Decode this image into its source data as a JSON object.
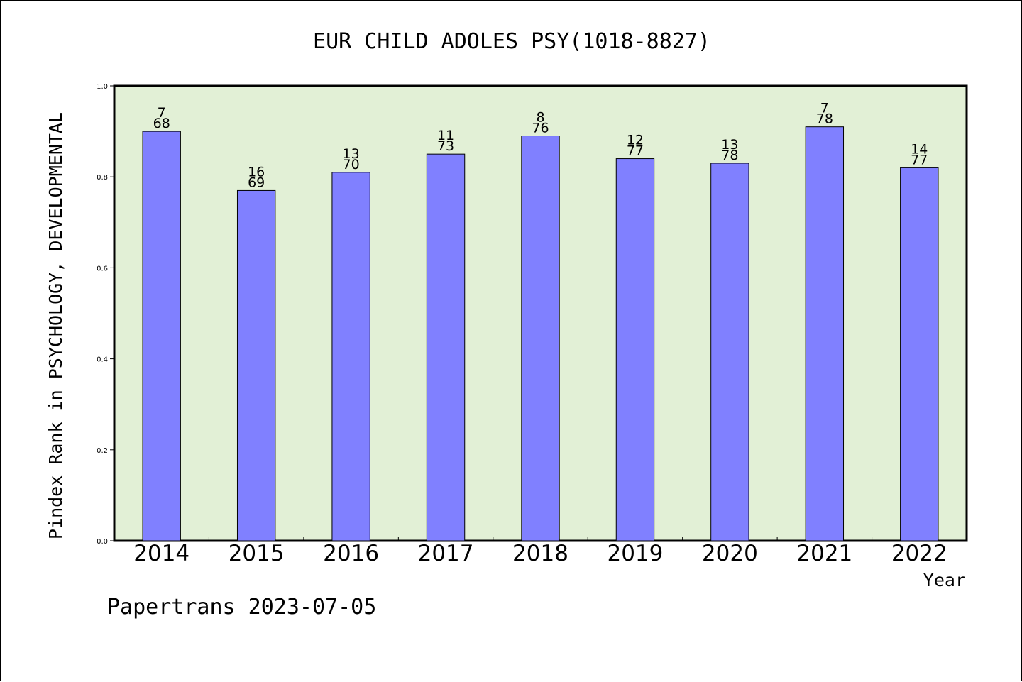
{
  "chart_data": {
    "type": "bar",
    "title": "EUR CHILD ADOLES PSY(1018-8827)",
    "xlabel": "Year",
    "ylabel": "Pindex Rank in PSYCHOLOGY, DEVELOPMENTAL",
    "categories": [
      "2014",
      "2015",
      "2016",
      "2017",
      "2018",
      "2019",
      "2020",
      "2021",
      "2022"
    ],
    "values": [
      0.9,
      0.77,
      0.81,
      0.85,
      0.89,
      0.84,
      0.83,
      0.91,
      0.82
    ],
    "rank_labels": [
      "7",
      "16",
      "13",
      "11",
      "8",
      "12",
      "13",
      "7",
      "14"
    ],
    "count_labels": [
      "68",
      "69",
      "70",
      "73",
      "76",
      "77",
      "78",
      "78",
      "77"
    ],
    "ylim": [
      0,
      1.0
    ],
    "yticks": [
      0.0,
      0.2,
      0.4,
      0.6,
      0.8,
      1.0
    ],
    "ytick_labels": [
      "0.0",
      "0.2",
      "0.4",
      "0.6",
      "0.8",
      "1.0"
    ],
    "grid": false,
    "legend": "none",
    "colors": {
      "bar_fill": "#8080ff",
      "plot_background": "#e2f0d6",
      "axis": "#000000"
    }
  },
  "footer": {
    "credit": "Papertrans 2023-07-05"
  }
}
